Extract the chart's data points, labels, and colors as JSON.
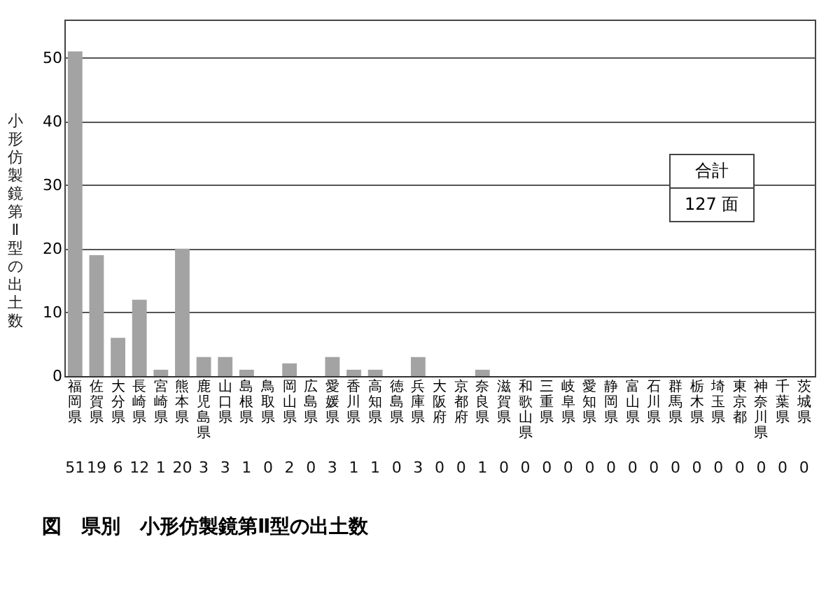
{
  "chart_data": {
    "type": "bar",
    "title": "図　県別　小形仿製鏡第Ⅱ型の出土数",
    "ylabel": "小形仿製鏡第Ⅱ型の出土数",
    "categories": [
      "福岡県",
      "佐賀県",
      "大分県",
      "長崎県",
      "宮崎県",
      "熊本県",
      "鹿児島県",
      "山口県",
      "島根県",
      "鳥取県",
      "岡山県",
      "広島県",
      "愛媛県",
      "香川県",
      "高知県",
      "徳島県",
      "兵庫県",
      "大阪府",
      "京都府",
      "奈良県",
      "滋賀県",
      "和歌山県",
      "三重県",
      "岐阜県",
      "愛知県",
      "静岡県",
      "富山県",
      "石川県",
      "群馬県",
      "栃木県",
      "埼玉県",
      "東京都",
      "神奈川県",
      "千葉県",
      "茨城県"
    ],
    "values": [
      51,
      19,
      6,
      12,
      1,
      20,
      3,
      3,
      1,
      0,
      2,
      0,
      3,
      1,
      1,
      0,
      3,
      0,
      0,
      1,
      0,
      0,
      0,
      0,
      0,
      0,
      0,
      0,
      0,
      0,
      0,
      0,
      0,
      0,
      0
    ],
    "color": "#a3a3a3",
    "ylim": [
      0,
      56
    ],
    "yticks": [
      0,
      10,
      20,
      30,
      40,
      50
    ],
    "grid": "y",
    "data_labels": true,
    "annotations": [
      "合計",
      "127 面"
    ]
  }
}
